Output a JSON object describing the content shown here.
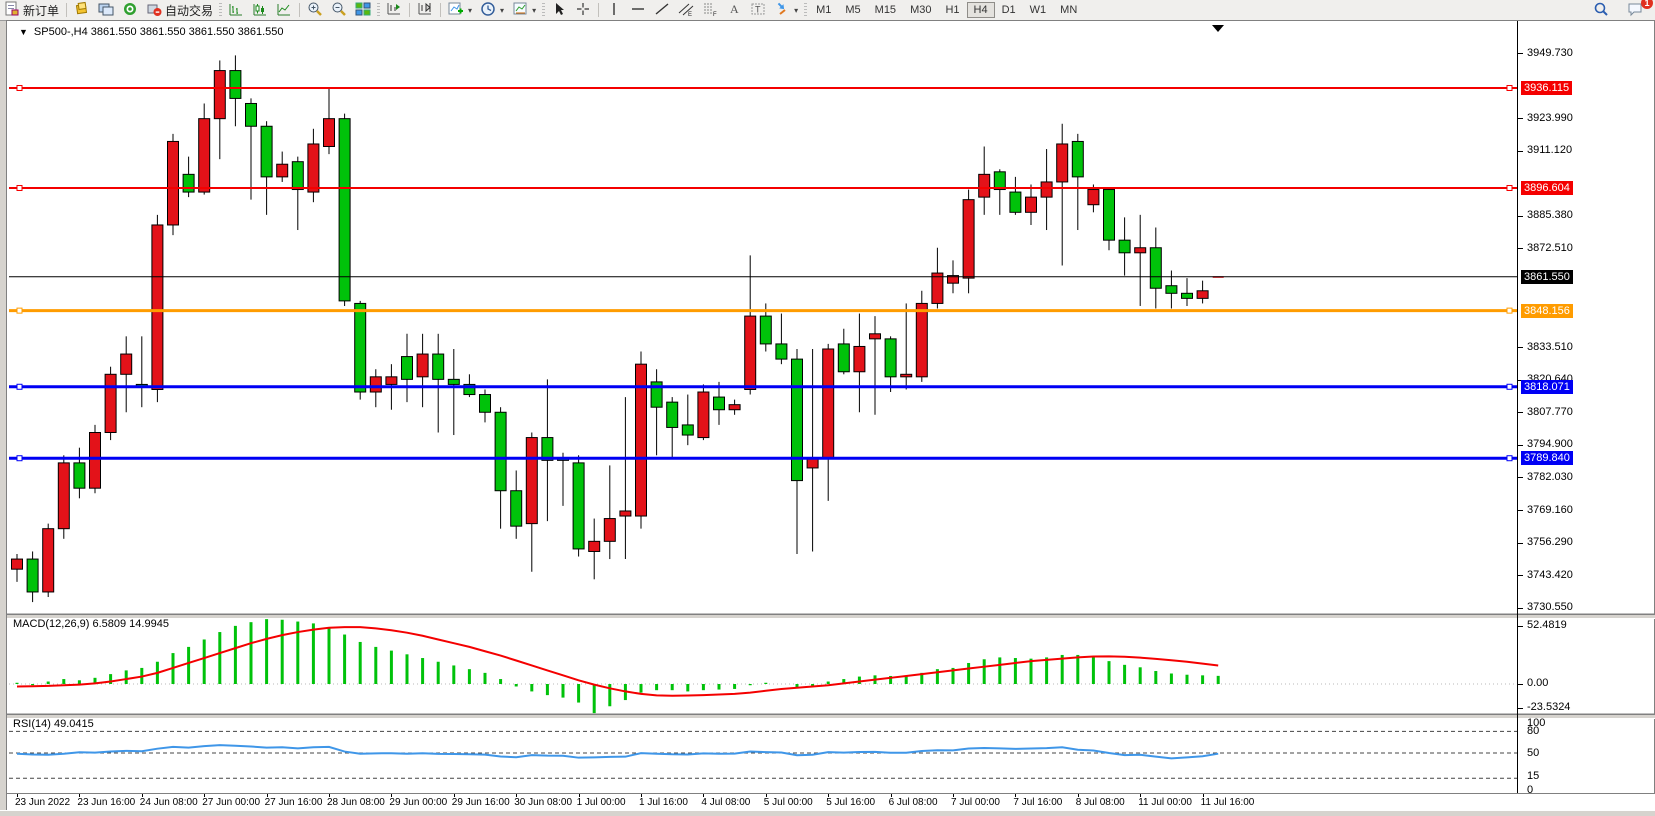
{
  "toolbar": {
    "new_order_label": "新订单",
    "autotrading_label": "自动交易",
    "icon_buttons_left": [
      "new-order",
      "metaeditor",
      "terminal",
      "signals",
      "autotrading"
    ],
    "chart_mode_icons": [
      "chart-bars",
      "chart-candles",
      "chart-line"
    ],
    "zoom_icons": [
      "zoom-in",
      "zoom-out",
      "tile-windows"
    ],
    "scroll_icons": [
      "auto-scroll",
      "chart-shift"
    ],
    "dropdown_icons": [
      "indicators",
      "periods",
      "templates"
    ],
    "pointer_icons": [
      "cursor",
      "crosshair"
    ],
    "draw_icons": [
      "vertical-line",
      "horizontal-line",
      "trend-line",
      "equidistant-channel",
      "fibonacci",
      "text",
      "text-label",
      "arrows"
    ],
    "timeframes": [
      {
        "label": "M1",
        "active": false
      },
      {
        "label": "M5",
        "active": false
      },
      {
        "label": "M15",
        "active": false
      },
      {
        "label": "M30",
        "active": false
      },
      {
        "label": "H1",
        "active": false
      },
      {
        "label": "H4",
        "active": true
      },
      {
        "label": "D1",
        "active": false
      },
      {
        "label": "W1",
        "active": false
      },
      {
        "label": "MN",
        "active": false
      }
    ],
    "right_icons": [
      "search",
      "chat"
    ],
    "chat_badge_count": "1"
  },
  "chart": {
    "title": "SP500-,H4  3861.550 3861.550 3861.550 3861.550",
    "symbol": "SP500-",
    "timeframe": "H4",
    "colors": {
      "up_candle": "#e31219",
      "down_candle": "#00c20a",
      "candle_border": "#000000",
      "line_red": "#f40000",
      "line_orange": "#ff9c00",
      "line_blue": "#0000f4",
      "line_black": "#000000",
      "macd_histogram": "#00c20a",
      "macd_signal": "#f40000",
      "rsi_line": "#3f96e8",
      "background": "#ffffff"
    }
  },
  "chart_data": {
    "type": "candlestick",
    "title": "SP500-,H4",
    "current_ohlc": [
      "3861.550",
      "3861.550",
      "3861.550",
      "3861.550"
    ],
    "price_ticks": [
      "3949.730",
      "3923.990",
      "3911.120",
      "3885.380",
      "3872.510",
      "3833.510",
      "3820.640",
      "3807.770",
      "3794.900",
      "3782.030",
      "3769.160",
      "3756.290",
      "3743.420",
      "3730.550"
    ],
    "horizontal_lines": [
      {
        "price": "3936.115",
        "color": "#f40000",
        "width": 2
      },
      {
        "price": "3896.604",
        "color": "#f40000",
        "width": 2
      },
      {
        "price": "3861.550",
        "color": "#000000",
        "width": 1
      },
      {
        "price": "3848.156",
        "color": "#ff9c00",
        "width": 3
      },
      {
        "price": "3818.071",
        "color": "#0000f4",
        "width": 3
      },
      {
        "price": "3789.840",
        "color": "#0000f4",
        "width": 3
      }
    ],
    "bars": [
      [
        3746,
        3752,
        3741,
        3750
      ],
      [
        3750,
        3753,
        3733,
        3737
      ],
      [
        3737,
        3764,
        3735,
        3762
      ],
      [
        3762,
        3791,
        3758,
        3788
      ],
      [
        3788,
        3794,
        3774,
        3778
      ],
      [
        3778,
        3803,
        3776,
        3800
      ],
      [
        3800,
        3826,
        3797,
        3823
      ],
      [
        3823,
        3838,
        3808,
        3831
      ],
      [
        3819,
        3838,
        3810,
        3818
      ],
      [
        3817,
        3886,
        3812,
        3882
      ],
      [
        3882,
        3918,
        3878,
        3915
      ],
      [
        3902,
        3909,
        3893,
        3895
      ],
      [
        3895,
        3930,
        3894,
        3924
      ],
      [
        3924,
        3947,
        3908,
        3943
      ],
      [
        3943,
        3949,
        3921,
        3932
      ],
      [
        3930,
        3932,
        3892,
        3921
      ],
      [
        3921,
        3923,
        3886,
        3901
      ],
      [
        3901,
        3911,
        3899,
        3906
      ],
      [
        3907,
        3909,
        3880,
        3896
      ],
      [
        3895,
        3920,
        3891,
        3914
      ],
      [
        3913,
        3936,
        3910,
        3924
      ],
      [
        3924,
        3926,
        3850,
        3852
      ],
      [
        3851,
        3852,
        3813,
        3816
      ],
      [
        3816,
        3825,
        3810,
        3822
      ],
      [
        3819,
        3827,
        3809,
        3822
      ],
      [
        3830,
        3839,
        3812,
        3821
      ],
      [
        3822,
        3839,
        3810,
        3831
      ],
      [
        3831,
        3839,
        3800,
        3821
      ],
      [
        3821,
        3833,
        3799,
        3819
      ],
      [
        3819,
        3823,
        3814,
        3815
      ],
      [
        3815,
        3817,
        3804,
        3808
      ],
      [
        3808,
        3810,
        3762,
        3777
      ],
      [
        3777,
        3785,
        3758,
        3763
      ],
      [
        3764,
        3800,
        3745,
        3798
      ],
      [
        3798,
        3821,
        3765,
        3789
      ],
      [
        3790,
        3792,
        3771,
        3789
      ],
      [
        3788,
        3791,
        3751,
        3754
      ],
      [
        3753,
        3766,
        3742,
        3757
      ],
      [
        3757,
        3787,
        3750,
        3766
      ],
      [
        3767,
        3814,
        3750,
        3769
      ],
      [
        3767,
        3832,
        3762,
        3827
      ],
      [
        3820,
        3825,
        3791,
        3810
      ],
      [
        3812,
        3814,
        3790,
        3802
      ],
      [
        3803,
        3815,
        3795,
        3799
      ],
      [
        3798,
        3819,
        3797,
        3816
      ],
      [
        3814,
        3820,
        3803,
        3809
      ],
      [
        3809,
        3813,
        3807,
        3811
      ],
      [
        3817,
        3870,
        3815,
        3846
      ],
      [
        3846,
        3851,
        3832,
        3835
      ],
      [
        3835,
        3847,
        3827,
        3829
      ],
      [
        3829,
        3833,
        3752,
        3781
      ],
      [
        3786,
        3833,
        3753,
        3790
      ],
      [
        3790,
        3835,
        3773,
        3833
      ],
      [
        3835,
        3841,
        3823,
        3824
      ],
      [
        3824,
        3847,
        3808,
        3834
      ],
      [
        3837,
        3846,
        3807,
        3839
      ],
      [
        3837,
        3838,
        3816,
        3822
      ],
      [
        3822,
        3851,
        3817,
        3823
      ],
      [
        3822,
        3856,
        3820,
        3851
      ],
      [
        3851,
        3873,
        3849,
        3863
      ],
      [
        3859,
        3868,
        3855,
        3862
      ],
      [
        3861,
        3896,
        3855,
        3892
      ],
      [
        3893,
        3913,
        3886,
        3902
      ],
      [
        3903,
        3904,
        3886,
        3896
      ],
      [
        3895,
        3901,
        3886,
        3887
      ],
      [
        3887,
        3898,
        3882,
        3893
      ],
      [
        3893,
        3912,
        3880,
        3899
      ],
      [
        3899,
        3922,
        3866,
        3914
      ],
      [
        3915,
        3918,
        3880,
        3901
      ],
      [
        3890,
        3898,
        3887,
        3896
      ],
      [
        3896,
        3897,
        3872,
        3876
      ],
      [
        3876,
        3885,
        3862,
        3871
      ],
      [
        3871,
        3886,
        3850,
        3873
      ],
      [
        3873,
        3881,
        3849,
        3857
      ],
      [
        3858,
        3864,
        3849,
        3855
      ],
      [
        3855,
        3861,
        3850,
        3853
      ],
      [
        3853,
        3860,
        3851,
        3856
      ],
      [
        3861.55,
        3861.55,
        3861.55,
        3861.55
      ]
    ],
    "time_labels": [
      {
        "bar": 0,
        "text": "23 Jun 2022"
      },
      {
        "bar": 4,
        "text": "23 Jun 16:00"
      },
      {
        "bar": 8,
        "text": "24 Jun 08:00"
      },
      {
        "bar": 12,
        "text": "27 Jun 00:00"
      },
      {
        "bar": 16,
        "text": "27 Jun 16:00"
      },
      {
        "bar": 20,
        "text": "28 Jun 08:00"
      },
      {
        "bar": 24,
        "text": "29 Jun 00:00"
      },
      {
        "bar": 28,
        "text": "29 Jun 16:00"
      },
      {
        "bar": 32,
        "text": "30 Jun 08:00"
      },
      {
        "bar": 36,
        "text": "1 Jul 00:00"
      },
      {
        "bar": 40,
        "text": "1 Jul 16:00"
      },
      {
        "bar": 44,
        "text": "4 Jul 08:00"
      },
      {
        "bar": 48,
        "text": "5 Jul 00:00"
      },
      {
        "bar": 52,
        "text": "5 Jul 16:00"
      },
      {
        "bar": 56,
        "text": "6 Jul 08:00"
      },
      {
        "bar": 60,
        "text": "7 Jul 00:00"
      },
      {
        "bar": 64,
        "text": "7 Jul 16:00"
      },
      {
        "bar": 68,
        "text": "8 Jul 08:00"
      },
      {
        "bar": 72,
        "text": "11 Jul 00:00"
      },
      {
        "bar": 76,
        "text": "11 Jul 16:00"
      }
    ],
    "macd": {
      "label": "MACD(12,26,9) 6.5809 14.9945",
      "params": "12,26,9",
      "main_value": 6.5809,
      "signal_value": 14.9945,
      "axis_ticks": [
        "52.4819",
        "0.00",
        "-23.5324"
      ],
      "histogram": [
        1,
        -1,
        2,
        4,
        3,
        5,
        8,
        11,
        13,
        18,
        25,
        30,
        36,
        42,
        47,
        50,
        52.4819,
        52,
        50.5,
        49,
        46,
        40,
        34,
        30,
        27,
        24,
        21,
        18,
        15,
        12,
        9,
        4,
        -2,
        -6,
        -9,
        -11,
        -15,
        -23.5324,
        -18,
        -13,
        -7,
        -5,
        -5,
        -6,
        -5,
        -4.5,
        -4,
        -1,
        1,
        0,
        -3,
        -2,
        2,
        4,
        6,
        7,
        6.5,
        6.5,
        9,
        12,
        13,
        17,
        20,
        21.5,
        21,
        20.5,
        21.5,
        23.5,
        23.5,
        22,
        18.5,
        15.5,
        13.5,
        10.5,
        8.5,
        7.5,
        7,
        6.5809
      ],
      "signal": [
        -2,
        -1.8,
        -1.5,
        -1,
        -0.5,
        0.5,
        2,
        4,
        6,
        9,
        13,
        17,
        21,
        25,
        29,
        33,
        36.5,
        39.5,
        42,
        44,
        45.5,
        46,
        46,
        45,
        43.5,
        41.5,
        39,
        36,
        33,
        30,
        26.5,
        23,
        19,
        15,
        11,
        7,
        3,
        -0.5,
        -3.5,
        -6,
        -8,
        -9.2,
        -9.5,
        -9.3,
        -9,
        -8.5,
        -8,
        -7,
        -5.5,
        -4,
        -3,
        -2,
        -1,
        0.5,
        2,
        3.5,
        5,
        6.5,
        8,
        9.5,
        11,
        12.5,
        14,
        15.5,
        17,
        18.5,
        19.5,
        20.5,
        21.5,
        22.2,
        22.3,
        22,
        21.3,
        20.3,
        19.2,
        18,
        16.5,
        14.9945
      ]
    },
    "rsi": {
      "label": "RSI(14) 49.0415",
      "period": 14,
      "value": 49.0415,
      "axis_ticks": [
        "100",
        "80",
        "50",
        "15",
        "0"
      ],
      "levels": [
        80,
        50,
        15
      ],
      "values": [
        49,
        48,
        47.5,
        49,
        51,
        50.5,
        52,
        53,
        52.5,
        56,
        58.5,
        57.5,
        59.5,
        61,
        60,
        59,
        57.5,
        58,
        56.5,
        58,
        58.5,
        52,
        49,
        49.5,
        49.7,
        49,
        49.6,
        48.8,
        48.6,
        48.3,
        47.8,
        45.2,
        44.1,
        47,
        46.3,
        46.2,
        43.5,
        43.9,
        44.6,
        44.9,
        49.8,
        49,
        48.2,
        47.9,
        49.4,
        49,
        49.2,
        52,
        51.2,
        50.7,
        46.9,
        47.6,
        51.2,
        50.5,
        51.4,
        51.6,
        50.3,
        50.4,
        52.8,
        53.8,
        53.7,
        56.2,
        57,
        56.4,
        55.7,
        56.2,
        56.7,
        57.9,
        54.5,
        53.5,
        50,
        47,
        47.5,
        45,
        42.5,
        44,
        45.5,
        49.0415
      ]
    }
  }
}
